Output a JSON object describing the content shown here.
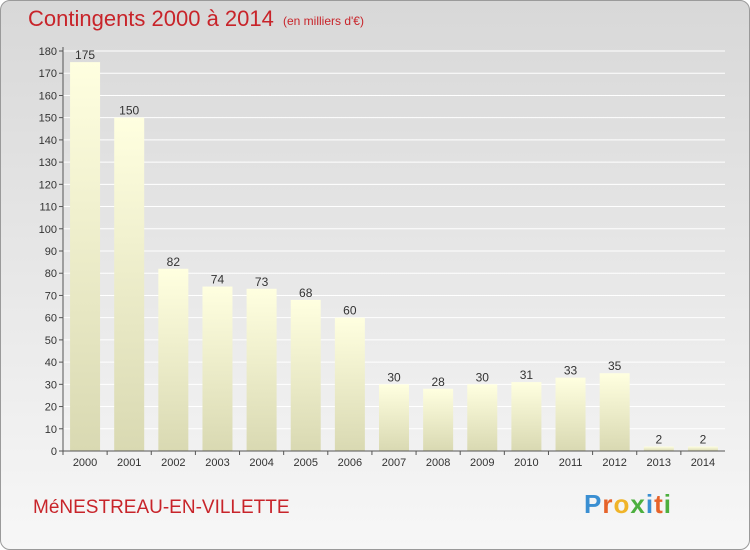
{
  "title": "Contingents 2000 à 2014",
  "subtitle": "(en milliers d'€)",
  "place": "MéNESTREAU-EN-VILLETTE",
  "brand": {
    "letters": [
      "P",
      "r",
      "o",
      "x",
      "i",
      "t",
      "i"
    ],
    "colors": [
      "#3a8fd2",
      "#e6632a",
      "#f0b429",
      "#4caf3e",
      "#3a8fd2",
      "#e6632a",
      "#4caf3e"
    ]
  },
  "colors": {
    "title": "#c8242a",
    "bar_top": "#ffffe0",
    "bar_bottom": "#d9d9b2",
    "grid": "#ffffff",
    "text": "#333333"
  },
  "chart_data": {
    "type": "bar",
    "categories": [
      "2000",
      "2001",
      "2002",
      "2003",
      "2004",
      "2005",
      "2006",
      "2007",
      "2008",
      "2009",
      "2010",
      "2011",
      "2012",
      "2013",
      "2014"
    ],
    "values": [
      175,
      150,
      82,
      74,
      73,
      68,
      60,
      30,
      28,
      30,
      31,
      33,
      35,
      2,
      2
    ],
    "title": "Contingents 2000 à 2014",
    "xlabel": "",
    "ylabel": "",
    "ylim": [
      0,
      180
    ],
    "yticks": [
      0,
      10,
      20,
      30,
      40,
      50,
      60,
      70,
      80,
      90,
      100,
      110,
      120,
      130,
      140,
      150,
      160,
      170,
      180
    ],
    "grid": true,
    "data_labels": true
  }
}
